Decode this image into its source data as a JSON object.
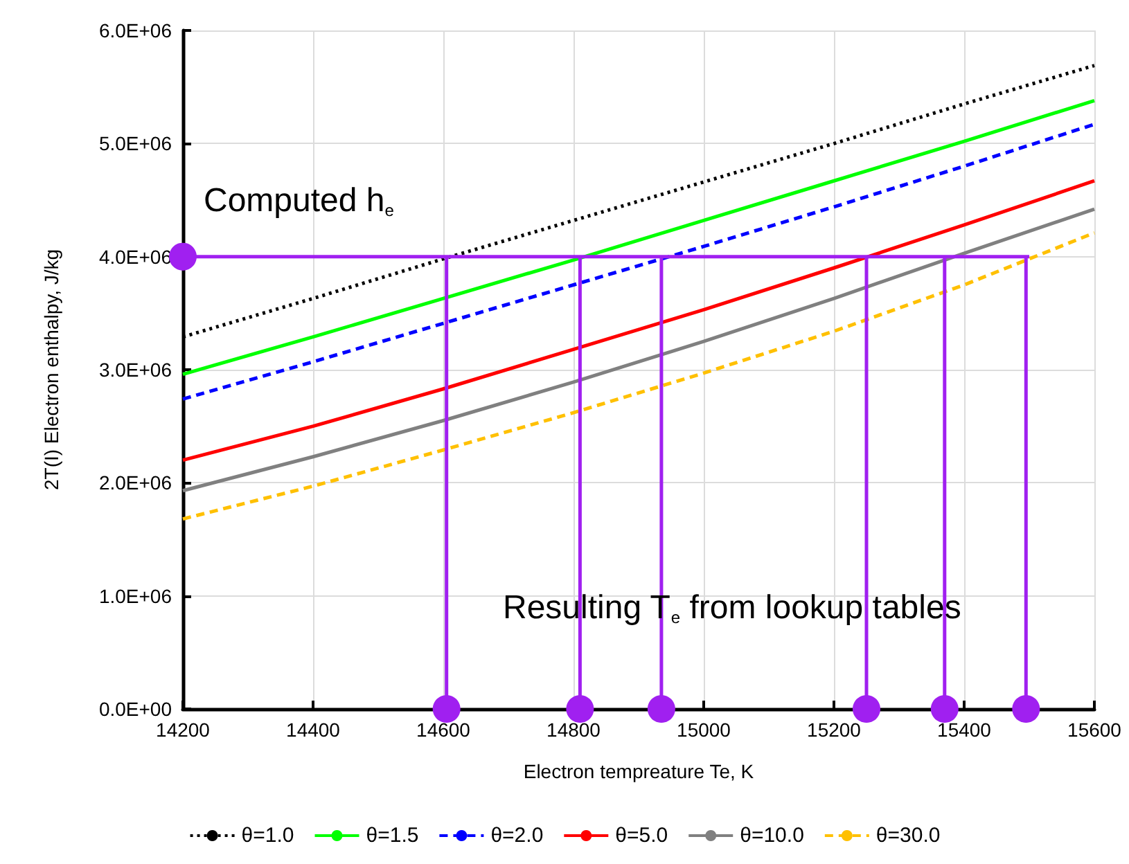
{
  "chart_data": {
    "type": "line",
    "xlabel": "Electron tempreature Te, K",
    "ylabel": "2T(I) Electron enthalpy, J/kg",
    "x": [
      14200,
      14400,
      14600,
      14800,
      15000,
      15200,
      15400,
      15600
    ],
    "series": [
      {
        "name": "θ=1.0",
        "color": "#000000",
        "line_style": "dotted",
        "values": [
          3290000,
          3630000,
          3980000,
          4320000,
          4660000,
          5000000,
          5350000,
          5690000
        ]
      },
      {
        "name": "θ=1.5",
        "color": "#00ff00",
        "line_style": "solid",
        "values": [
          2960000,
          3290000,
          3630000,
          3970000,
          4320000,
          4670000,
          5020000,
          5380000
        ]
      },
      {
        "name": "θ=2.0",
        "color": "#0000ff",
        "line_style": "dashed",
        "values": [
          2740000,
          3070000,
          3410000,
          3750000,
          4090000,
          4440000,
          4800000,
          5170000
        ]
      },
      {
        "name": "θ=5.0",
        "color": "#ff0000",
        "line_style": "solid",
        "values": [
          2200000,
          2500000,
          2830000,
          3180000,
          3530000,
          3900000,
          4280000,
          4670000
        ]
      },
      {
        "name": "θ=10.0",
        "color": "#808080",
        "line_style": "solid",
        "values": [
          1930000,
          2230000,
          2550000,
          2890000,
          3250000,
          3630000,
          4030000,
          4420000
        ]
      },
      {
        "name": "θ=30.0",
        "color": "#ffc000",
        "line_style": "dashed",
        "values": [
          1680000,
          1970000,
          2290000,
          2620000,
          2970000,
          3340000,
          3750000,
          4210000
        ]
      },
      {
        "color": "#a020f0",
        "line_style": "solid",
        "x": [
          14200,
          15500
        ],
        "values": [
          4000000,
          4000000
        ]
      },
      {
        "color": "#a020f0",
        "line_style": "solid",
        "x": [
          14605,
          14605
        ],
        "values": [
          0,
          4000000
        ]
      },
      {
        "color": "#a020f0",
        "line_style": "solid",
        "x": [
          14810,
          14810
        ],
        "values": [
          0,
          4000000
        ]
      },
      {
        "color": "#a020f0",
        "line_style": "solid",
        "x": [
          14935,
          14935
        ],
        "values": [
          0,
          4000000
        ]
      },
      {
        "color": "#a020f0",
        "line_style": "solid",
        "x": [
          15250,
          15250
        ],
        "values": [
          0,
          4000000
        ]
      },
      {
        "color": "#a020f0",
        "line_style": "solid",
        "x": [
          15370,
          15370
        ],
        "values": [
          0,
          4000000
        ]
      },
      {
        "color": "#a020f0",
        "line_style": "solid",
        "x": [
          15495,
          15495
        ],
        "values": [
          0,
          4000000
        ]
      },
      {
        "type": "scatter",
        "marker": "circle",
        "color": "#a020f0",
        "x": [
          14200,
          14605,
          14810,
          14935,
          15250,
          15370,
          15495
        ],
        "values": [
          4000000,
          0,
          0,
          0,
          0,
          0,
          0
        ]
      }
    ],
    "annotations": [
      "Computed h$_{e}$",
      "Resulting T$_{e}$ from lookup tables"
    ],
    "xlim": [
      14200,
      15600
    ],
    "xticks": [
      14200,
      14400,
      14600,
      14800,
      15000,
      15200,
      15400,
      15600
    ],
    "ylim": [
      0,
      6000000
    ],
    "yticks": [
      {
        "value": 0,
        "label": "0.0E+00"
      },
      {
        "value": 1000000,
        "label": "1.0E+06"
      },
      {
        "value": 2000000,
        "label": "2.0E+06"
      },
      {
        "value": 3000000,
        "label": "3.0E+06"
      },
      {
        "value": 4000000,
        "label": "4.0E+06"
      },
      {
        "value": 5000000,
        "label": "5.0E+06"
      },
      {
        "value": 6000000,
        "label": "6.0E+06"
      }
    ],
    "grid": true,
    "legend": "bottom",
    "marker": "none"
  }
}
